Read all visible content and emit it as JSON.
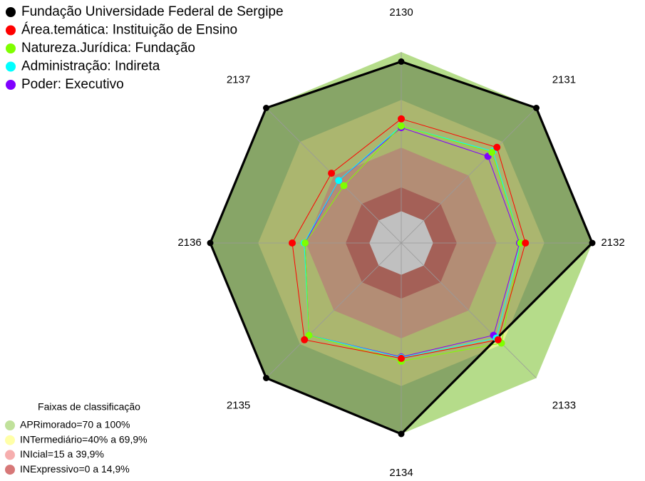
{
  "chart_data": {
    "type": "radar",
    "categories": [
      "2130",
      "2131",
      "2132",
      "2133",
      "2134",
      "2135",
      "2136",
      "2137"
    ],
    "ylim": [
      -20,
      100
    ],
    "series": [
      {
        "name": "Fundação Universidade Federal de Sergipe",
        "color": "#000000",
        "values": [
          94,
          100,
          100,
          null,
          100,
          100,
          100,
          100
        ]
      },
      {
        "name": "Área.temática: Instituição de Ensino",
        "color": "#ff0000",
        "values": [
          58,
          65,
          58,
          66,
          52.5,
          66,
          48.5,
          42
        ]
      },
      {
        "name": "Natureza.Jurídica: Fundação",
        "color": "#7fff00",
        "values": [
          53.5,
          60.5,
          55,
          69,
          54.3,
          62,
          40.4,
          31
        ]
      },
      {
        "name": "Administração: Indireta",
        "color": "#00ffff",
        "values": [
          53.5,
          61.5,
          55,
          64.5,
          52,
          62,
          41,
          35.6
        ]
      },
      {
        "name": "Poder: Executivo",
        "color": "#8000ff",
        "values": [
          52.5,
          57,
          54.3,
          62,
          51.6,
          62,
          40.4,
          35.6
        ]
      }
    ],
    "bands_title": "Faixas de classificação",
    "bands": [
      {
        "label": "APRimorado=70 a 100%",
        "from": 70,
        "to": 100,
        "color": "#b5dc8a"
      },
      {
        "label": "INTermediário=40% a 69,9%",
        "from": 40,
        "to": 69.9,
        "color": "#ffff99"
      },
      {
        "label": "INIcial=15 a 39,9%",
        "from": 15,
        "to": 39.9,
        "color": "#f4a0a0"
      },
      {
        "label": "INExpressivo=0 a 14,9%",
        "from": 0,
        "to": 14.9,
        "color": "#d06060"
      }
    ]
  }
}
